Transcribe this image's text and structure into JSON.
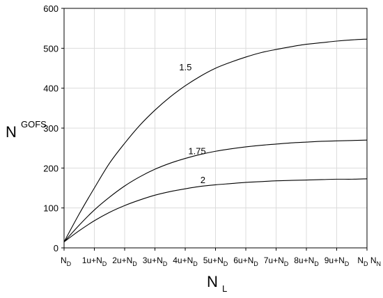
{
  "chart_data": {
    "type": "line",
    "ylabel": {
      "main": "N",
      "sup": "GOFS"
    },
    "xlabel": {
      "main": "N",
      "sub": "L"
    },
    "ylim": [
      0,
      600
    ],
    "yticks": [
      "0",
      "100",
      "200",
      "300",
      "400",
      "500",
      "600"
    ],
    "yticks_values": [
      0,
      100,
      200,
      300,
      400,
      500,
      600
    ],
    "xlim": [
      0,
      10
    ],
    "xticks": [
      {
        "pre": "N",
        "sub": "D",
        "post": ""
      },
      {
        "pre": "1u+N",
        "sub": "D",
        "post": ""
      },
      {
        "pre": "2u+N",
        "sub": "D",
        "post": ""
      },
      {
        "pre": "3u+N",
        "sub": "D",
        "post": ""
      },
      {
        "pre": "4u+N",
        "sub": "D",
        "post": ""
      },
      {
        "pre": "5u+N",
        "sub": "D",
        "post": ""
      },
      {
        "pre": "6u+N",
        "sub": "D",
        "post": ""
      },
      {
        "pre": "7u+N",
        "sub": "D",
        "post": ""
      },
      {
        "pre": "8u+N",
        "sub": "D",
        "post": ""
      },
      {
        "pre": "9u+N",
        "sub": "D",
        "post": ""
      },
      {
        "pre": "N",
        "sub": "D",
        "post": " N",
        "post_sub": "N"
      }
    ],
    "grid": true,
    "series": [
      {
        "label": "1.5",
        "x": [
          0,
          0.5,
          1,
          1.5,
          2,
          2.5,
          3,
          3.5,
          4,
          4.5,
          5,
          5.5,
          6,
          6.5,
          7,
          7.5,
          8,
          8.5,
          9,
          9.5,
          10
        ],
        "y": [
          15,
          85,
          150,
          212,
          262,
          307,
          345,
          378,
          406,
          430,
          450,
          465,
          478,
          489,
          497,
          504,
          510,
          514,
          518,
          521,
          523
        ]
      },
      {
        "label": "1.75",
        "x": [
          0,
          0.5,
          1,
          1.5,
          2,
          2.5,
          3,
          3.5,
          4,
          4.5,
          5,
          5.5,
          6,
          6.5,
          7,
          7.5,
          8,
          8.5,
          9,
          9.5,
          10
        ],
        "y": [
          15,
          57,
          95,
          127,
          155,
          178,
          197,
          212,
          224,
          234,
          242,
          248,
          253,
          257,
          260,
          263,
          265,
          267,
          268,
          269,
          270
        ]
      },
      {
        "label": "2",
        "x": [
          0,
          0.5,
          1,
          1.5,
          2,
          2.5,
          3,
          3.5,
          4,
          4.5,
          5,
          5.5,
          6,
          6.5,
          7,
          7.5,
          8,
          8.5,
          9,
          9.5,
          10
        ],
        "y": [
          15,
          43,
          68,
          89,
          106,
          120,
          132,
          141,
          148,
          154,
          158,
          161,
          164,
          166,
          168,
          169,
          170,
          171,
          172,
          172,
          173
        ]
      }
    ],
    "line_color": "#000000",
    "grid_color": "#dcdcdc"
  }
}
